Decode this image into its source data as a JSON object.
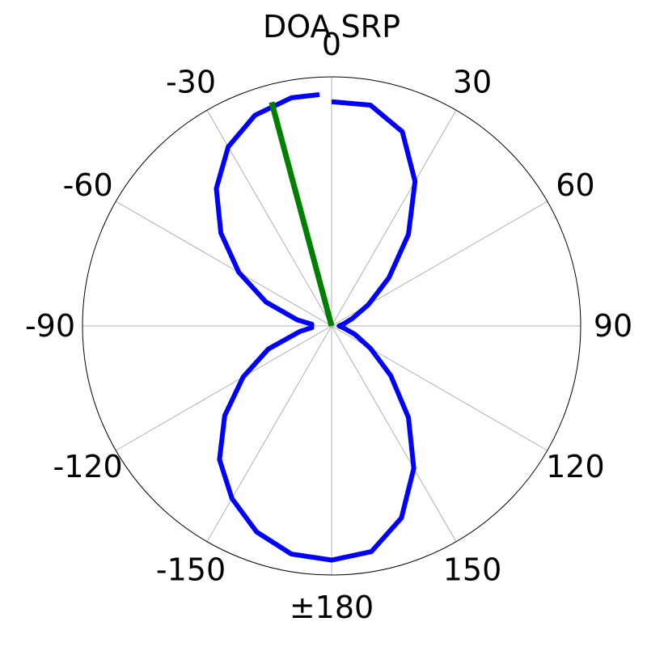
{
  "chart_data": {
    "type": "polar-line",
    "title": "DOA SRP",
    "angle_zero_location": "top",
    "angle_direction": "clockwise",
    "grid": true,
    "angle_ticks": [
      {
        "angle": 0,
        "label": "0"
      },
      {
        "angle": 30,
        "label": "30"
      },
      {
        "angle": 60,
        "label": "60"
      },
      {
        "angle": 90,
        "label": "90"
      },
      {
        "angle": 120,
        "label": "120"
      },
      {
        "angle": 150,
        "label": "150"
      },
      {
        "angle": 180,
        "label": "±180"
      },
      {
        "angle": -150,
        "label": "-150"
      },
      {
        "angle": -120,
        "label": "-120"
      },
      {
        "angle": -90,
        "label": "-90"
      },
      {
        "angle": -60,
        "label": "-60"
      },
      {
        "angle": -30,
        "label": "-30"
      }
    ],
    "r_max": 1.0,
    "series": [
      {
        "color": "#0000ff",
        "points": [
          {
            "angle": 0,
            "r": 0.9
          },
          {
            "angle": 10,
            "r": 0.9
          },
          {
            "angle": 20,
            "r": 0.83
          },
          {
            "angle": 30,
            "r": 0.67
          },
          {
            "angle": 40,
            "r": 0.48
          },
          {
            "angle": 50,
            "r": 0.3
          },
          {
            "angle": 60,
            "r": 0.17
          },
          {
            "angle": 70,
            "r": 0.09
          },
          {
            "angle": 80,
            "r": 0.05
          },
          {
            "angle": 90,
            "r": 0.03
          },
          {
            "angle": 100,
            "r": 0.05
          },
          {
            "angle": 110,
            "r": 0.1
          },
          {
            "angle": 120,
            "r": 0.18
          },
          {
            "angle": 130,
            "r": 0.31
          },
          {
            "angle": 140,
            "r": 0.48
          },
          {
            "angle": 150,
            "r": 0.66
          },
          {
            "angle": 160,
            "r": 0.82
          },
          {
            "angle": 170,
            "r": 0.92
          },
          {
            "angle": 180,
            "r": 0.94
          },
          {
            "angle": -170,
            "r": 0.93
          },
          {
            "angle": -160,
            "r": 0.88
          },
          {
            "angle": -150,
            "r": 0.8
          },
          {
            "angle": -140,
            "r": 0.7
          },
          {
            "angle": -130,
            "r": 0.56
          },
          {
            "angle": -120,
            "r": 0.41
          },
          {
            "angle": -110,
            "r": 0.27
          },
          {
            "angle": -100,
            "r": 0.13
          },
          {
            "angle": -95,
            "r": 0.08
          },
          {
            "angle": -90,
            "r": 0.08
          },
          {
            "angle": -85,
            "r": 0.08
          },
          {
            "angle": -80,
            "r": 0.14
          },
          {
            "angle": -70,
            "r": 0.28
          },
          {
            "angle": -60,
            "r": 0.43
          },
          {
            "angle": -50,
            "r": 0.58
          },
          {
            "angle": -40,
            "r": 0.72
          },
          {
            "angle": -30,
            "r": 0.83
          },
          {
            "angle": -20,
            "r": 0.9
          },
          {
            "angle": -10,
            "r": 0.93
          },
          {
            "angle": -3,
            "r": 0.93
          }
        ]
      },
      {
        "color": "#008000",
        "points": [
          {
            "angle": -15,
            "r": 0.0
          },
          {
            "angle": -15,
            "r": 0.93
          }
        ]
      }
    ]
  }
}
